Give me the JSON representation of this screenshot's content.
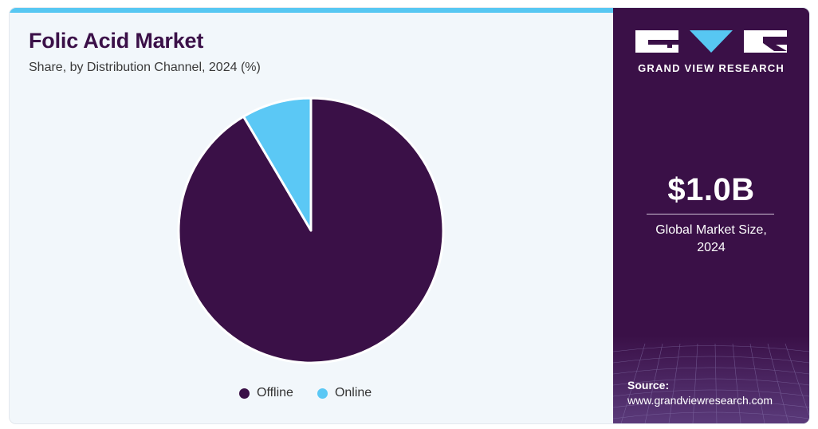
{
  "header": {
    "title": "Folic Acid Market",
    "subtitle": "Share, by Distribution Channel, 2024 (%)"
  },
  "chart_data": {
    "type": "pie",
    "categories": [
      "Offline",
      "Online"
    ],
    "values": [
      91.5,
      8.5
    ],
    "colors": [
      "#3a1047",
      "#5bc8f5"
    ],
    "title": "Folic Acid Market",
    "subtitle": "Share, by Distribution Channel, 2024 (%)",
    "legend_position": "bottom",
    "start": "top, clockwise"
  },
  "legend": {
    "items": [
      {
        "label": "Offline",
        "color": "#3a1047"
      },
      {
        "label": "Online",
        "color": "#5bc8f5"
      }
    ]
  },
  "sidebar": {
    "brand": "GRAND VIEW RESEARCH",
    "market_size": "$1.0B",
    "market_size_caption_line1": "Global Market Size,",
    "market_size_caption_line2": "2024",
    "source_label": "Source:",
    "source_url": "www.grandviewresearch.com"
  },
  "colors": {
    "brand_purple": "#3a1047",
    "accent_blue": "#57c7f2",
    "panel_background": "#f2f7fb"
  }
}
